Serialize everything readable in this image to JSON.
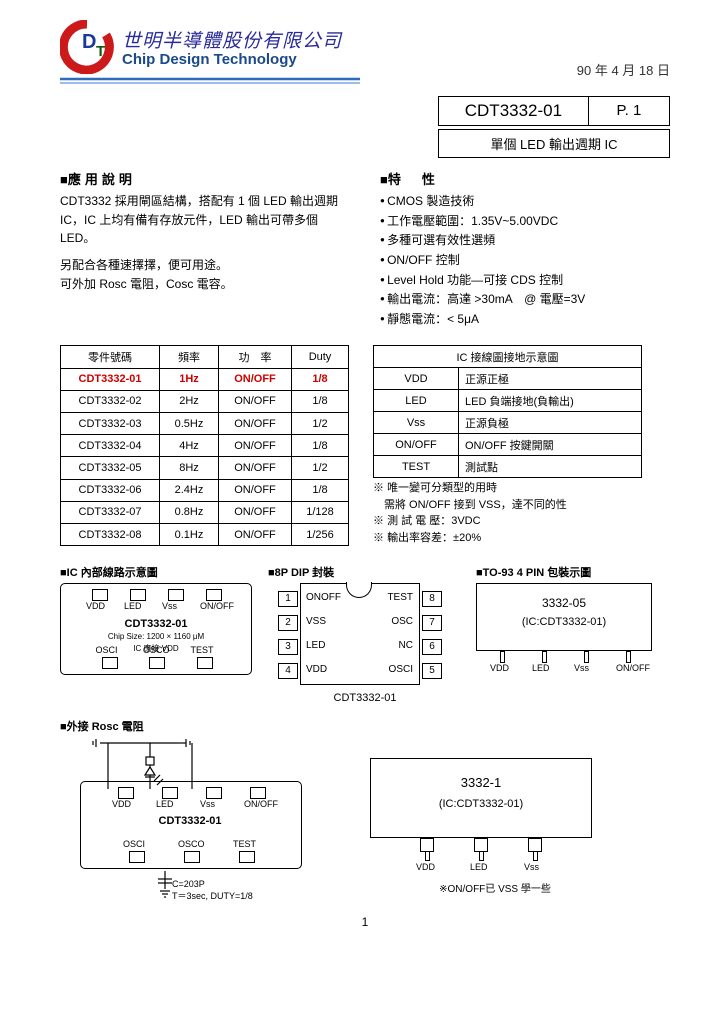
{
  "header": {
    "company_cn": "世明半導體股份有限公司",
    "company_en": "Chip Design Technology",
    "date": "90 年 4 月 18 日",
    "logo_colors": {
      "red": "#cc1a1a",
      "blue": "#1a3a9a",
      "green": "#0a5a0a"
    },
    "rule_colors": {
      "top": "#2e6bbd",
      "bottom": "#7aa8e0"
    }
  },
  "doc": {
    "part": "CDT3332-01",
    "page": "P. 1",
    "subtitle": "單個 LED 輸出週期 IC"
  },
  "left_section": {
    "title": "應用說明",
    "para1": "CDT3332 採用閘區結構，搭配有 1 個 LED 輸出週期 IC，IC 上均有備有存放元件，LED 輸出可帶多個 LED。",
    "para2": "另配合各種速擇擇，便可用途。\n可外加 Rosc 電阻，Cosc 電容。"
  },
  "right_section": {
    "title": "特　性",
    "bullets": [
      "CMOS 製造技術",
      "工作電壓範圍：1.35V~5.00VDC",
      "多種可選有效性選頻",
      "ON/OFF 控制",
      "Level Hold 功能—可接 CDS 控制",
      "輸出電流：高達 >30mA　@ 電壓=3V",
      "靜態電流：< 5μA"
    ]
  },
  "table1": {
    "headers": [
      "零件號碼",
      "頻率",
      "功　率",
      "Duty"
    ],
    "rows": [
      [
        "CDT3332-01",
        "1Hz",
        "ON/OFF",
        "1/8"
      ],
      [
        "CDT3332-02",
        "2Hz",
        "ON/OFF",
        "1/8"
      ],
      [
        "CDT3332-03",
        "0.5Hz",
        "ON/OFF",
        "1/2"
      ],
      [
        "CDT3332-04",
        "4Hz",
        "ON/OFF",
        "1/8"
      ],
      [
        "CDT3332-05",
        "8Hz",
        "ON/OFF",
        "1/2"
      ],
      [
        "CDT3332-06",
        "2.4Hz",
        "ON/OFF",
        "1/8"
      ],
      [
        "CDT3332-07",
        "0.8Hz",
        "ON/OFF",
        "1/128"
      ],
      [
        "CDT3332-08",
        "0.1Hz",
        "ON/OFF",
        "1/256"
      ]
    ],
    "highlight_row": 0,
    "col_widths": [
      "86px",
      "46px",
      "60px",
      "44px"
    ]
  },
  "table2": {
    "title": "IC 接線圖接地示意圖",
    "rows": [
      [
        "VDD",
        "正源正極"
      ],
      [
        "LED",
        "LED 負端接地(負輸出)"
      ],
      [
        "Vss",
        "正源負極"
      ],
      [
        "ON/OFF",
        "ON/OFF 按鍵開關"
      ],
      [
        "TEST",
        "測試點"
      ]
    ],
    "notes": [
      "唯一變可分類型的用時\n　需將 ON/OFF 接到 VSS，達不同的性",
      "測 試 電 壓：3VDC",
      "輸出率容差：±20%"
    ],
    "col_widths": [
      "72px",
      "170px"
    ]
  },
  "diagram1": {
    "label": "IC 內部線路示意圖",
    "name": "CDT3332-01",
    "sub": "Chip Size: 1200 × 1160 μM\nIC 應接 VDD",
    "pads_top": [
      "VDD",
      "LED",
      "Vss",
      "ON/OFF"
    ],
    "pads_bot": [
      "OSCI",
      "OSCO",
      "TEST"
    ]
  },
  "diagram2": {
    "label": "8P DIP 封裝",
    "name": "CDT3332-01",
    "left_pins": [
      [
        "1",
        "ONOFF"
      ],
      [
        "2",
        "VSS"
      ],
      [
        "3",
        "LED"
      ],
      [
        "4",
        "VDD"
      ]
    ],
    "right_pins": [
      [
        "8",
        "TEST"
      ],
      [
        "7",
        "OSC"
      ],
      [
        "6",
        "NC"
      ],
      [
        "5",
        "OSCI"
      ]
    ]
  },
  "diagram3": {
    "label": "TO-93 4 PIN 包裝示圖",
    "t1": "3332-05",
    "t2": "(IC:CDT3332-01)",
    "pins": [
      "VDD",
      "LED",
      "Vss",
      "ON/OFF"
    ]
  },
  "diagram4": {
    "label": "外接 Rosc 電阻",
    "name": "CDT3332-01",
    "pads_top": [
      "VDD",
      "LED",
      "Vss",
      "ON/OFF"
    ],
    "pads_bot": [
      "OSCI",
      "OSCO",
      "TEST"
    ],
    "cap_note": "C=203P\nT＝3sec, DUTY=1/8"
  },
  "diagram5": {
    "t1": "3332-1",
    "t2": "(IC:CDT3332-01)",
    "pins": [
      "VDD",
      "LED",
      "Vss"
    ],
    "note": "※ON/OFF已 VSS 學一些"
  },
  "page_number": "1"
}
